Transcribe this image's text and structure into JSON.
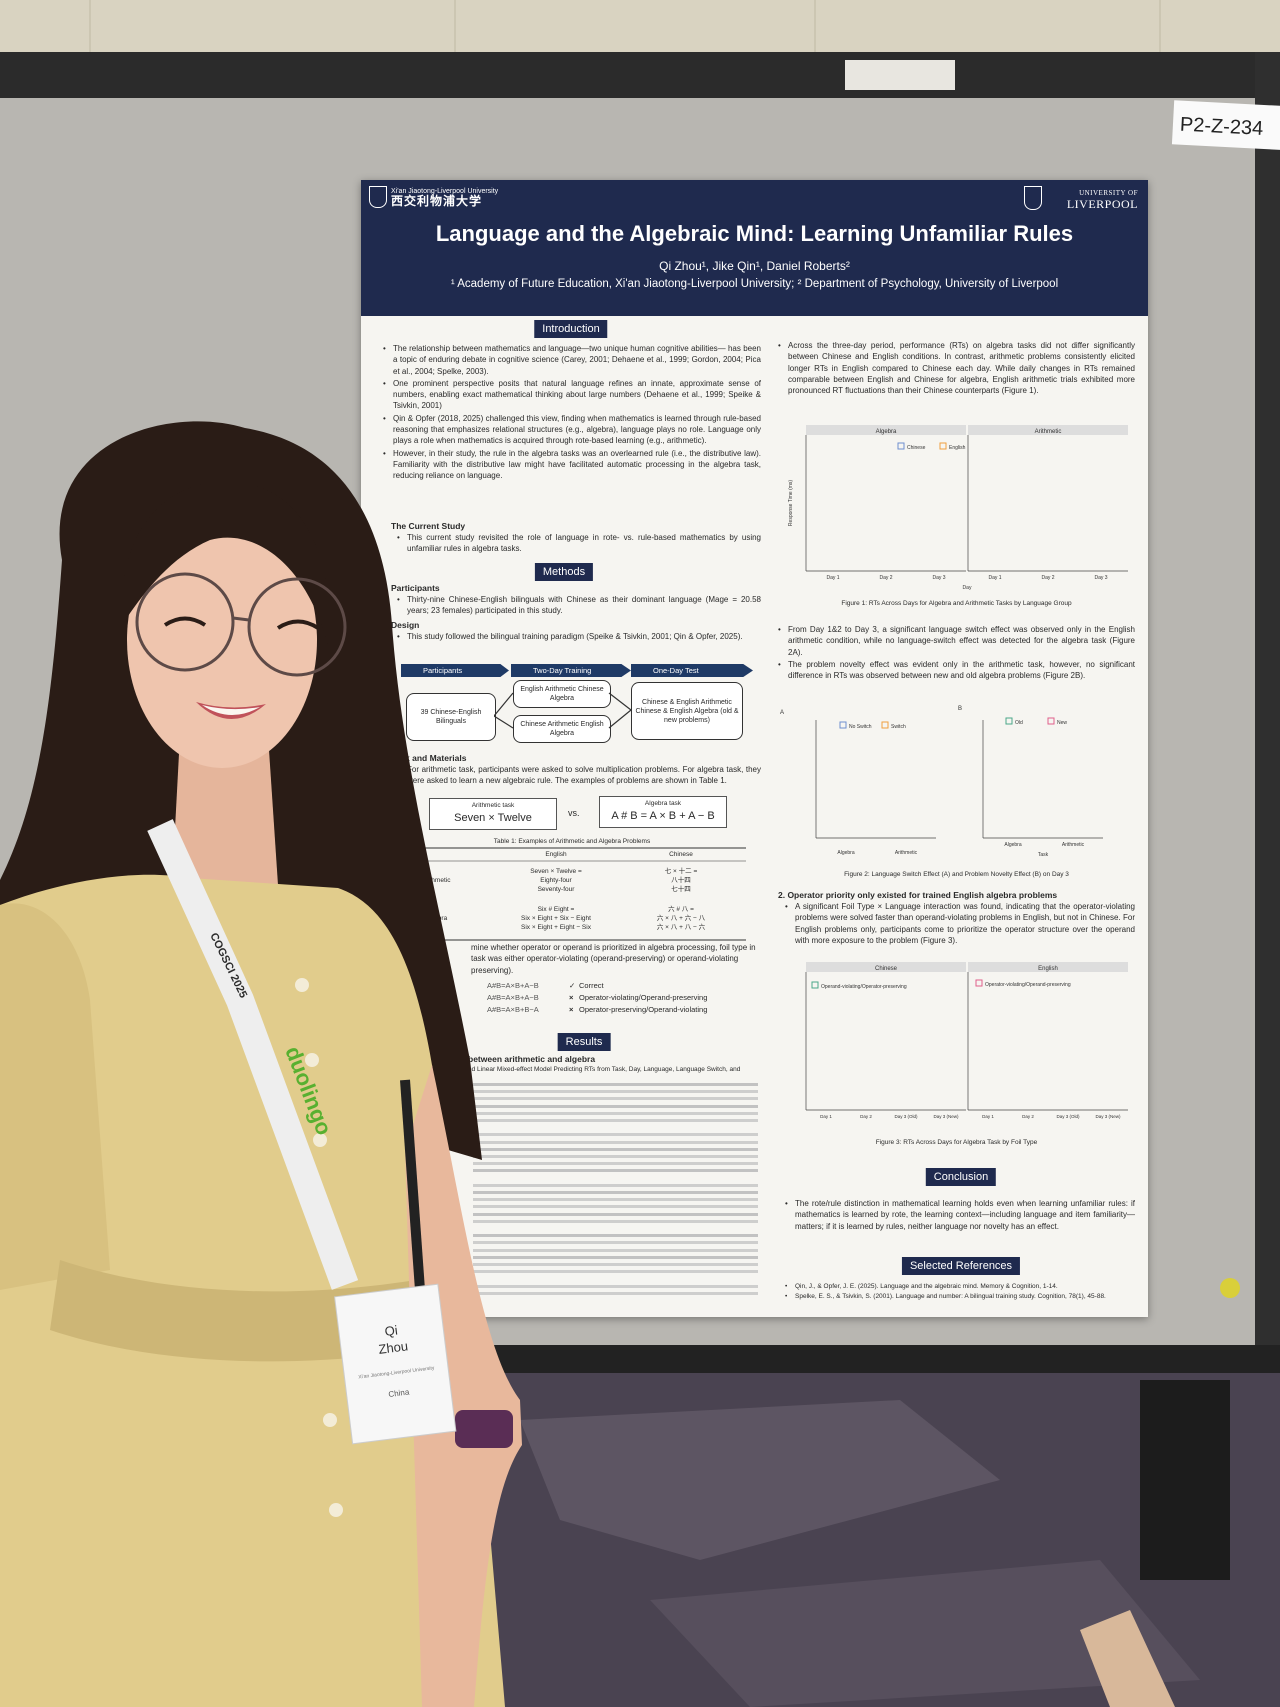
{
  "board_label": "P2-Z-234",
  "poster": {
    "header": {
      "left_en": "Xi'an Jiaotong-Liverpool University",
      "left_cn": "西交利物浦大学",
      "right_top": "UNIVERSITY OF",
      "right_bottom": "LIVERPOOL",
      "title": "Language and the Algebraic Mind: Learning Unfamiliar Rules",
      "authors": "Qi Zhou¹, Jike Qin¹, Daniel Roberts²",
      "affiliations": "¹ Academy of Future Education, Xi'an Jiaotong-Liverpool University; ² Department of Psychology, University of Liverpool"
    },
    "introduction": {
      "heading": "Introduction",
      "bullets": [
        "The relationship between mathematics and language—two unique human cognitive abilities— has been a topic of enduring debate in cognitive science (Carey, 2001; Dehaene et al., 1999; Gordon, 2004; Pica et al., 2004; Spelke, 2003).",
        "One prominent perspective posits that natural language refines an innate, approximate sense of numbers, enabling exact mathematical thinking about large numbers (Dehaene et al., 1999; Speike & Tsivkin, 2001)",
        "Qin & Opfer (2018, 2025) challenged this view, finding when mathematics is learned through rule-based reasoning that emphasizes relational structures (e.g., algebra), language plays no role. Language only plays a role when mathematics is acquired through rote-based learning (e.g., arithmetic).",
        "However, in their study, the rule in the algebra tasks was an overlearned rule (i.e., the distributive law). Familiarity with the distributive law might have facilitated automatic processing in the algebra task, reducing reliance on language."
      ],
      "current_study_heading": "The Current Study",
      "current_study": [
        "This current study revisited the role of language in rote- vs. rule-based mathematics by using unfamiliar rules in algebra tasks."
      ]
    },
    "methods": {
      "heading": "Methods",
      "participants_heading": "Participants",
      "participants": [
        "Thirty-nine Chinese-English bilinguals with Chinese as their dominant language (Mage = 20.58 years; 23 females) participated in this study."
      ],
      "design_heading": "Design",
      "design": [
        "This study followed the bilingual training paradigm (Speike & Tsivkin, 2001; Qin & Opfer, 2025)."
      ],
      "flow": {
        "steps": [
          "Participants",
          "Two-Day Training",
          "One-Day Test"
        ],
        "sample": "39 Chinese-English Bilinguals",
        "training": [
          "English Arithmetic Chinese Algebra",
          "Chinese Arithmetic English Algebra"
        ],
        "test": "Chinese & English Arithmetic Chinese & English Algebra (old & new problems)"
      },
      "task_heading": "Task and Materials",
      "task": [
        "For arithmetic task, participants were asked to solve multiplication problems. For algebra task, they were asked to learn a new algebraic rule. The examples of problems are shown in Table 1."
      ],
      "examples": [
        {
          "label": "Arithmetic task",
          "problem": "Seven × Twelve"
        },
        {
          "label": "Algebra task",
          "problem": "A # B = A × B + A − B"
        }
      ],
      "vs": "vs.",
      "table": {
        "caption": "Table 1: Examples of Arithmetic and Algebra Problems",
        "columns": [
          "English",
          "Chinese"
        ],
        "rows": [
          {
            "label": "Arithmetic",
            "english": [
              "Seven × Twelve =",
              "Eighty-four",
              "Seventy-four"
            ],
            "chinese": [
              "七 × 十二 =",
              "八十四",
              "七十四"
            ]
          },
          {
            "label": "Algebra",
            "english": [
              "Six # Eight =",
              "Six × Eight + Six − Eight",
              "Six × Eight + Eight − Six"
            ],
            "chinese": [
              "六 # 八 =",
              "六 × 八 + 六 − 八",
              "六 × 八 + 八 − 六"
            ]
          }
        ]
      },
      "foil_lines": [
        "mine whether operator or operand is prioritized in algebra processing, foil type in",
        "task was either operator-violating (operand-preserving) or operand-violating",
        "preserving)."
      ],
      "foils": [
        {
          "expr": "A#B=A×B+A−B",
          "mark": "✓",
          "label": "Correct"
        },
        {
          "expr": "A#B=A×B+A−B",
          "mark": "×",
          "label": "Operator-violating/Operand-preserving"
        },
        {
          "expr": "A#B=A×B+B−A",
          "mark": "×",
          "label": "Operator-preserving/Operand-violating"
        }
      ]
    },
    "results": {
      "heading": "Results",
      "subheading": "between arithmetic and algebra",
      "table_caption": "ed Linear Mixed-effect Model Predicting RTs from Task, Day, Language, Language Switch, and"
    },
    "findings": {
      "intro": [
        "Across the three-day period, performance (RTs) on algebra tasks did not differ significantly between Chinese and English conditions. In contrast, arithmetic problems consistently elicited longer RTs in English compared to Chinese each day. While daily changes in RTs remained comparable between English and Chinese for algebra, English arithmetic trials exhibited more pronounced RT fluctuations than their Chinese counterparts (Figure 1)."
      ],
      "figure1": {
        "panels": [
          "Algebra",
          "Arithmetic"
        ],
        "legend": [
          "Chinese",
          "English"
        ],
        "y_label": "Response Time (ms)",
        "days": [
          "Day 1",
          "Day 2",
          "Day 3"
        ],
        "x_label": "Day",
        "caption": "Figure 1: RTs Across Days for Algebra and Arithmetic Tasks by Language Group"
      },
      "bullets2": [
        "From Day 1&2 to Day 3, a significant language switch effect was observed only in the English arithmetic condition, while no language-switch effect was detected for the algebra task (Figure 2A).",
        "The problem novelty effect was evident only in the arithmetic task, however, no significant difference in RTs was observed between new and old algebra problems (Figure 2B)."
      ],
      "figure2": {
        "letters": [
          "A",
          "B"
        ],
        "legend_a": [
          "No Switch",
          "Switch"
        ],
        "legend_b": [
          "Old",
          "New"
        ],
        "groups": [
          "Algebra",
          "Arithmetic"
        ],
        "x_label": "Task",
        "caption": "Figure 2: Language Switch Effect (A) and Problem Novelty Effect (B) on Day 3"
      },
      "section2_heading": "2. Operator priority only existed for trained English algebra problems",
      "section2": [
        "A significant Foil Type × Language interaction was found, indicating that the operator-violating problems were solved faster than operand-violating problems in English, but not in Chinese. For English problems only, participants come to prioritize the operator structure over the operand with more exposure to the problem (Figure 3)."
      ],
      "figure3": {
        "panels": [
          "Chinese",
          "English"
        ],
        "legend": [
          "Operand-violating/Operator-preserving",
          "Operator-violating/Operand-preserving"
        ],
        "days": [
          "Day 1",
          "Day 2",
          "Day 3 (Old)",
          "Day 3 (New)"
        ],
        "caption": "Figure 3: RTs Across Days for Algebra Task by Foil Type"
      },
      "conclusion_heading": "Conclusion",
      "conclusion": [
        "The rote/rule distinction in mathematical learning holds even when learning unfamiliar rules: if mathematics is learned by rote, the learning context—including language and item familiarity—matters; if it is learned by rules, neither language nor novelty has an effect."
      ],
      "references_heading": "Selected References",
      "references": [
        "Qin, J., & Opfer, J. E. (2025). Language and the algebraic mind. Memory & Cognition, 1-14.",
        "Spelke, E. S., & Tsivkin, S. (2001). Language and number: A bilingual training study. Cognition, 78(1), 45-88."
      ]
    }
  },
  "lanyard": [
    "duolingo",
    "COGSCI 2025"
  ],
  "badge": {
    "first": "Qi",
    "last": "Zhou",
    "affiliation": "Xi'an Jiaotong-Liverpool University",
    "country": "China"
  }
}
